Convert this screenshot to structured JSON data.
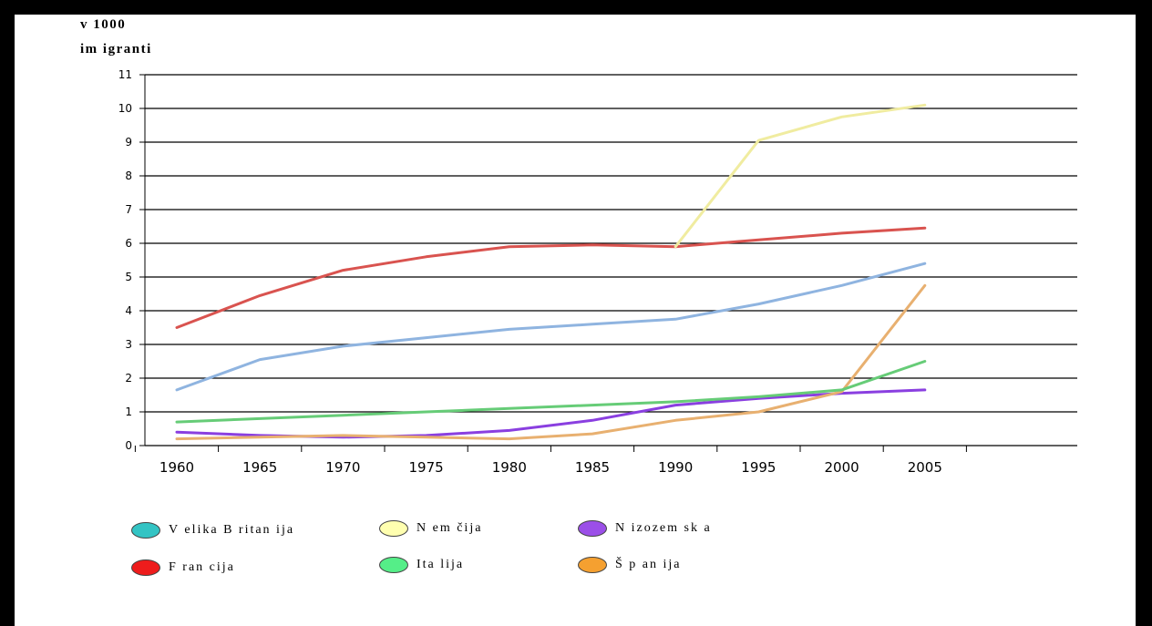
{
  "chart_data": {
    "type": "line",
    "title": "",
    "ylabel_lines": [
      "v 1000",
      "im igranti"
    ],
    "xlabel": "",
    "x": [
      1960,
      1965,
      1970,
      1975,
      1980,
      1985,
      1990,
      1995,
      2000,
      2005
    ],
    "ylim": [
      0,
      11
    ],
    "yticks": [
      0,
      1,
      2,
      3,
      4,
      5,
      6,
      7,
      8,
      9,
      10,
      11
    ],
    "grid": true,
    "legend_position": "bottom",
    "series": [
      {
        "name": "Velika Britanija",
        "legend_color": "#33c4c4",
        "line_color": "#8fb4e0",
        "values": [
          1.65,
          2.55,
          2.95,
          3.2,
          3.45,
          3.6,
          3.75,
          4.2,
          4.75,
          5.4
        ]
      },
      {
        "name": "Francija",
        "legend_color": "#ee1c1c",
        "line_color": "#d9534f",
        "values": [
          3.5,
          4.45,
          5.2,
          5.6,
          5.9,
          5.95,
          5.9,
          6.1,
          6.3,
          6.45
        ]
      },
      {
        "name": "Nemčija",
        "legend_color": "#ffffb0",
        "line_color": "#f0eca0",
        "values": [
          null,
          null,
          null,
          null,
          null,
          null,
          5.9,
          9.05,
          9.75,
          10.1
        ]
      },
      {
        "name": "Italija",
        "legend_color": "#55ee88",
        "line_color": "#66cc77",
        "values": [
          0.7,
          0.8,
          0.9,
          1.0,
          1.1,
          1.2,
          1.3,
          1.45,
          1.65,
          2.5
        ]
      },
      {
        "name": "Nizozemska",
        "legend_color": "#9b4fe8",
        "line_color": "#8a3fe0",
        "values": [
          0.4,
          0.3,
          0.25,
          0.3,
          0.45,
          0.75,
          1.2,
          1.4,
          1.55,
          1.65
        ]
      },
      {
        "name": "Španija",
        "legend_color": "#f5a030",
        "line_color": "#e8b070",
        "values": [
          0.2,
          0.25,
          0.3,
          0.25,
          0.2,
          0.35,
          0.75,
          1.0,
          1.6,
          4.75
        ]
      }
    ]
  },
  "legend": [
    {
      "label": "V elika B ritan ija",
      "series": 0
    },
    {
      "label": "N em čija",
      "series": 2
    },
    {
      "label": "N izozem sk a",
      "series": 4
    },
    {
      "label": "F ran cija",
      "series": 1
    },
    {
      "label": "Ita lija",
      "series": 3
    },
    {
      "label": "Š p an ija",
      "series": 5
    }
  ]
}
